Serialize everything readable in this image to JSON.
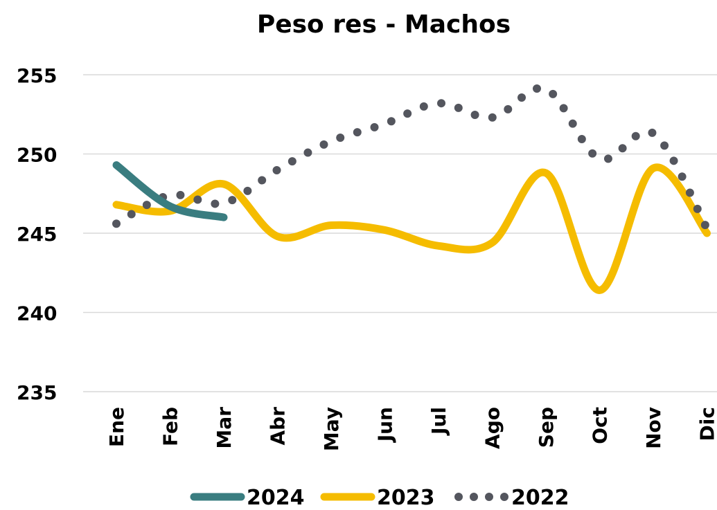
{
  "chart_data": {
    "type": "line",
    "title": "Peso res - Machos",
    "categories": [
      "Ene",
      "Feb",
      "Mar",
      "Abr",
      "May",
      "Jun",
      "Jul",
      "Ago",
      "Sep",
      "Oct",
      "Nov",
      "Dic"
    ],
    "series": [
      {
        "name": "2024",
        "color": "#3a7d80",
        "style": "solid",
        "values": [
          249.3,
          246.7,
          246.0,
          null,
          null,
          null,
          null,
          null,
          null,
          null,
          null,
          null
        ]
      },
      {
        "name": "2023",
        "color": "#f5bc00",
        "style": "solid",
        "values": [
          246.8,
          246.4,
          248.1,
          244.8,
          245.5,
          245.2,
          244.2,
          244.4,
          248.8,
          241.4,
          249.1,
          245.0
        ]
      },
      {
        "name": "2022",
        "color": "#54565e",
        "style": "dotted",
        "values": [
          245.6,
          247.4,
          246.9,
          249.0,
          250.8,
          251.9,
          253.2,
          252.3,
          254.1,
          249.7,
          251.3,
          245.3
        ]
      }
    ],
    "ylim": [
      235,
      255
    ],
    "yticks": [
      235,
      240,
      245,
      250,
      255
    ],
    "grid": true,
    "legend": "bottom"
  }
}
